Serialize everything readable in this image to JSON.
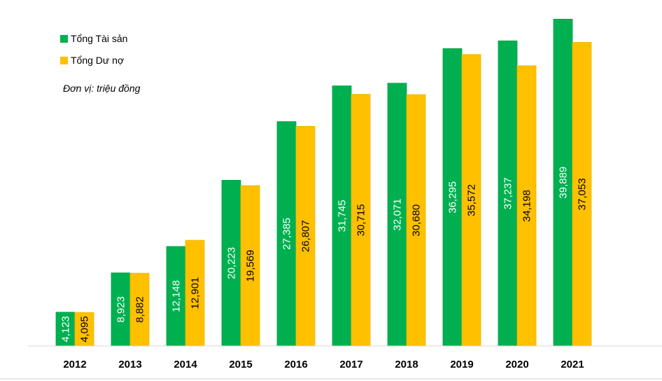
{
  "chart_data": {
    "type": "bar",
    "title": "",
    "unit_note": "Đơn vị: triệu đồng",
    "categories": [
      "2012",
      "2013",
      "2014",
      "2015",
      "2016",
      "2017",
      "2018",
      "2019",
      "2020",
      "2021"
    ],
    "series": [
      {
        "name": "Tổng Tài sản",
        "color": "#00b050",
        "label_color": "#ffffff",
        "values": [
          4123,
          8923,
          12148,
          20223,
          27385,
          31745,
          32071,
          36295,
          37237,
          39889
        ],
        "labels": [
          "4,123",
          "8,923",
          "12,148",
          "20,223",
          "27,385",
          "31,745",
          "32,071",
          "36,295",
          "37,237",
          "39,889"
        ]
      },
      {
        "name": "Tổng Dư nợ",
        "color": "#ffc000",
        "label_color": "#000000",
        "values": [
          4095,
          8882,
          12901,
          19569,
          26807,
          30715,
          30680,
          35572,
          34198,
          37053
        ],
        "labels": [
          "4,095",
          "8,882",
          "12,901",
          "19,569",
          "26,807",
          "30,715",
          "30,680",
          "35,572",
          "34,198",
          "37,053"
        ]
      }
    ],
    "ylim": [
      0,
      40000
    ],
    "grid": false,
    "legend_position": "top-left"
  }
}
